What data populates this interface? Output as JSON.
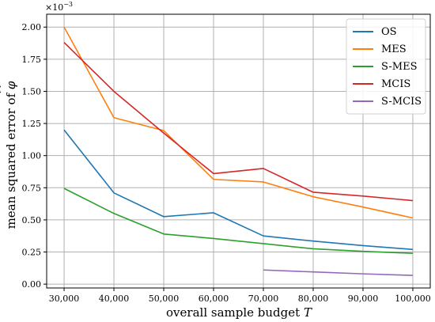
{
  "chart_data": {
    "type": "line",
    "xlabel_prefix": "overall sample budget ",
    "xlabel_var": "T",
    "ylabel_prefix": "mean squared error of ",
    "ylabel_var": "φ",
    "ylabel_hat": "^",
    "y_offset_text": "×10",
    "y_offset_exp": "−3",
    "x_ticks": [
      30000,
      40000,
      50000,
      60000,
      70000,
      80000,
      90000,
      100000
    ],
    "x_tick_labels": [
      "30,000",
      "40,000",
      "50,000",
      "60,000",
      "70,000",
      "80,000",
      "90,000",
      "100,000"
    ],
    "y_ticks": [
      0.0,
      0.25,
      0.5,
      0.75,
      1.0,
      1.25,
      1.5,
      1.75,
      2.0
    ],
    "y_tick_labels": [
      "0.00",
      "0.25",
      "0.50",
      "0.75",
      "1.00",
      "1.25",
      "1.50",
      "1.75",
      "2.00"
    ],
    "xlim": [
      26500,
      103500
    ],
    "ylim": [
      -0.03,
      2.1
    ],
    "grid": true,
    "legend_position": "top-right",
    "series": [
      {
        "name": "OS",
        "color": "#1f77b4",
        "x": [
          30000,
          40000,
          50000,
          60000,
          70000,
          80000,
          90000,
          100000
        ],
        "y": [
          1.2,
          0.71,
          0.525,
          0.555,
          0.375,
          0.335,
          0.3,
          0.27
        ]
      },
      {
        "name": "MES",
        "color": "#ff7f0e",
        "x": [
          30000,
          40000,
          50000,
          60000,
          70000,
          80000,
          90000,
          100000
        ],
        "y": [
          2.0,
          1.295,
          1.195,
          0.815,
          0.795,
          0.68,
          0.6,
          0.515
        ]
      },
      {
        "name": "S-MES",
        "color": "#2ca02c",
        "x": [
          30000,
          40000,
          50000,
          60000,
          70000,
          80000,
          90000,
          100000
        ],
        "y": [
          0.745,
          0.55,
          0.39,
          0.355,
          0.315,
          0.275,
          0.255,
          0.24
        ]
      },
      {
        "name": "MCIS",
        "color": "#d62728",
        "x": [
          30000,
          40000,
          50000,
          60000,
          70000,
          80000,
          90000,
          100000
        ],
        "y": [
          1.88,
          1.5,
          1.175,
          0.86,
          0.9,
          0.715,
          0.685,
          0.65
        ]
      },
      {
        "name": "S-MCIS",
        "color": "#9467bd",
        "x": [
          70000,
          80000,
          90000,
          100000
        ],
        "y": [
          0.11,
          0.095,
          0.08,
          0.068
        ]
      }
    ]
  }
}
